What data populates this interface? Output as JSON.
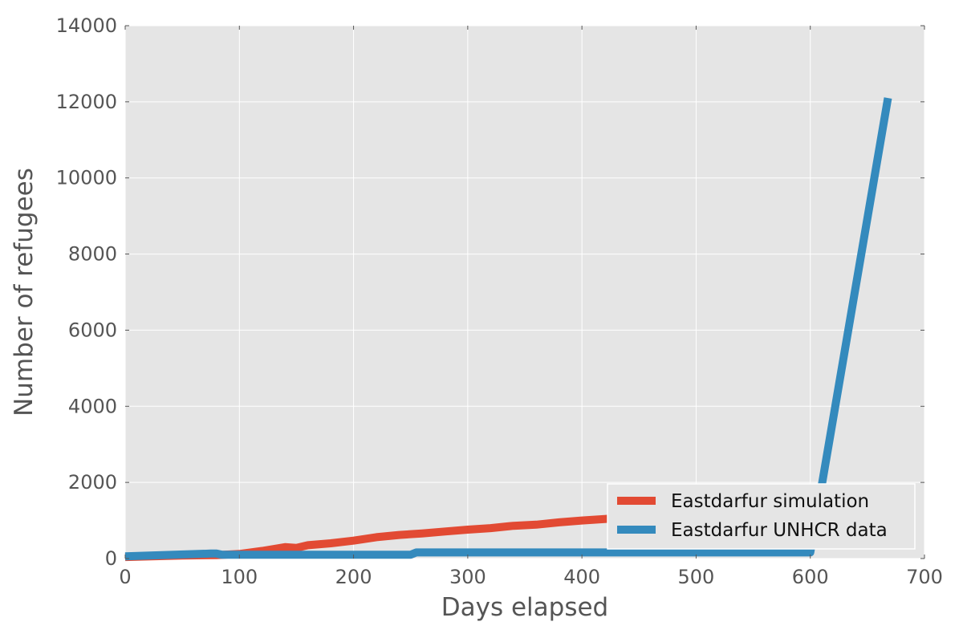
{
  "chart_data": {
    "type": "line",
    "title": "",
    "xlabel": "Days elapsed",
    "ylabel": "Number of refugees",
    "xlim": [
      0,
      700
    ],
    "ylim": [
      0,
      14000
    ],
    "xticks": [
      0,
      100,
      200,
      300,
      400,
      500,
      600,
      700
    ],
    "yticks": [
      0,
      2000,
      4000,
      6000,
      8000,
      10000,
      12000,
      14000
    ],
    "grid": true,
    "legend_position": "lower-right",
    "colors": {
      "background": "#e5e5e5",
      "grid": "#ffffff"
    },
    "series": [
      {
        "name": "Eastdarfur simulation",
        "color": "#e24a33",
        "x": [
          0,
          50,
          80,
          100,
          120,
          140,
          150,
          160,
          180,
          200,
          220,
          240,
          260,
          280,
          300,
          320,
          340,
          360,
          380,
          400,
          420,
          440,
          460,
          480,
          500
        ],
        "y": [
          40,
          80,
          90,
          120,
          200,
          300,
          280,
          350,
          400,
          470,
          560,
          620,
          660,
          710,
          760,
          800,
          860,
          890,
          950,
          1000,
          1040,
          1080,
          1120,
          1160,
          1200
        ]
      },
      {
        "name": "Eastdarfur UNHCR data",
        "color": "#348abd",
        "x": [
          0,
          75,
          80,
          85,
          250,
          255,
          600,
          668
        ],
        "y": [
          60,
          130,
          130,
          100,
          100,
          160,
          160,
          12100
        ]
      }
    ]
  }
}
